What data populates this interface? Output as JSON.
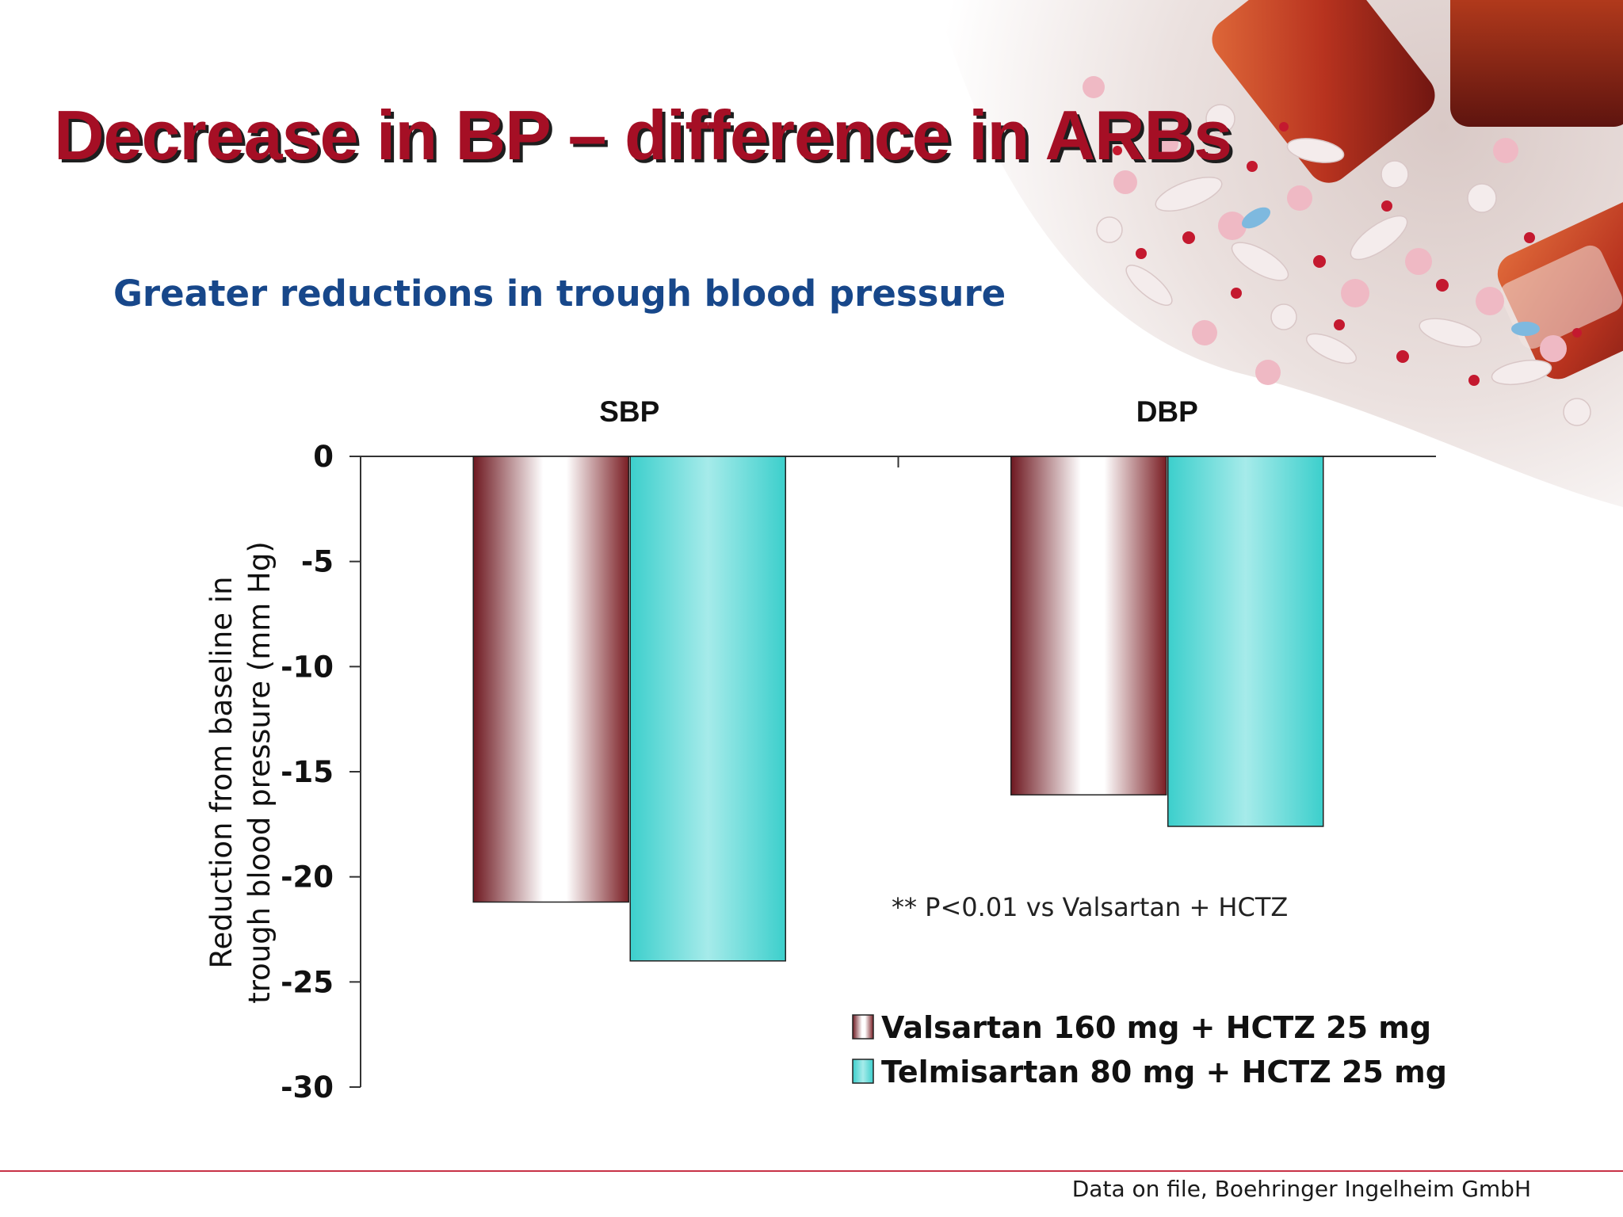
{
  "slide": {
    "title": "Decrease in BP – difference in ARBs",
    "subtitle": "Greater reductions in trough blood pressure",
    "footnote": "Data on file, Boehringer Ingelheim GmbH",
    "background_image": "scattered pills and medicine bottles",
    "title_color": "#a50f25",
    "subtitle_color": "#17478a",
    "rule_color": "#c83246"
  },
  "chart_data": {
    "type": "bar",
    "title": "",
    "categories": [
      "SBP",
      "DBP"
    ],
    "category_axis_position": "top",
    "ylabel": "Reduction from baseline in trough blood pressure (mm Hg)",
    "ylabel_lines": [
      "Reduction from baseline in",
      "trough blood pressure (mm Hg)"
    ],
    "ylim": [
      -30,
      0
    ],
    "yticks": [
      0,
      -5,
      -10,
      -15,
      -20,
      -25,
      -30
    ],
    "ytick_labels": [
      "0",
      "-5",
      "-10",
      "-15",
      "-20",
      "-25",
      "-30"
    ],
    "grid": false,
    "legend_position": "bottom-right",
    "series": [
      {
        "name": "Valsartan 160 mg + HCTZ 25 mg",
        "values": [
          -21.2,
          -16.1
        ],
        "color": "#7a1e24",
        "fill_style": "gradient dark red to white"
      },
      {
        "name": "Telmisartan 80 mg + HCTZ 25 mg",
        "values": [
          -24.0,
          -17.6
        ],
        "color": "#3ccfcc",
        "fill_style": "gradient turquoise to light cyan"
      }
    ],
    "annotation": "** P<0.01 vs Valsartan + HCTZ"
  }
}
